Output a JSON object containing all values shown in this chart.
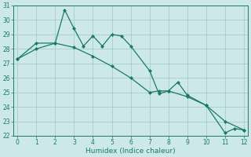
{
  "xlabel": "Humidex (Indice chaleur)",
  "x_jagged": [
    0,
    1,
    2,
    2.5,
    3,
    3.5,
    4,
    4.5,
    5,
    5.5,
    6,
    7,
    7.5,
    8,
    8.5,
    9,
    10,
    11,
    11.5,
    12
  ],
  "y_jagged": [
    27.3,
    28.4,
    28.4,
    30.7,
    29.4,
    28.2,
    28.9,
    28.2,
    29.0,
    28.9,
    28.2,
    26.5,
    24.9,
    25.1,
    25.7,
    24.8,
    24.1,
    22.2,
    22.5,
    22.4
  ],
  "x_smooth": [
    0,
    1,
    2,
    3,
    4,
    5,
    6,
    7,
    7.5,
    8,
    9,
    10,
    11,
    12
  ],
  "y_smooth": [
    27.3,
    28.0,
    28.4,
    28.1,
    27.5,
    26.8,
    26.0,
    25.0,
    25.1,
    25.1,
    24.7,
    24.1,
    23.0,
    22.4
  ],
  "line_color": "#1a7a6a",
  "bg_color": "#cce8e8",
  "grid_color": "#b0d0d0",
  "ylim": [
    22,
    31
  ],
  "xlim": [
    -0.2,
    12.2
  ],
  "yticks": [
    22,
    23,
    24,
    25,
    26,
    27,
    28,
    29,
    30,
    31
  ],
  "xticks": [
    0,
    1,
    2,
    3,
    4,
    5,
    6,
    7,
    8,
    9,
    10,
    11,
    12
  ]
}
